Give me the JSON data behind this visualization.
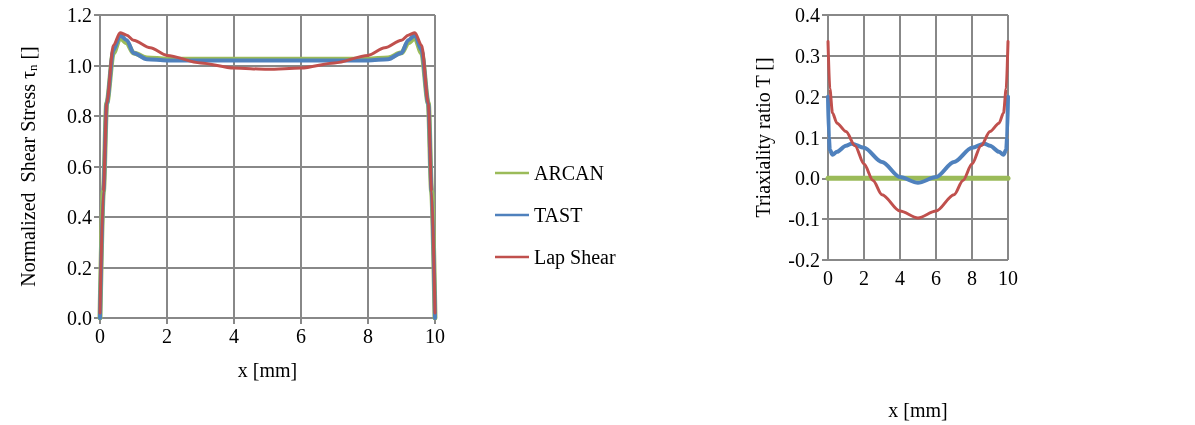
{
  "chart_data": [
    {
      "type": "line",
      "xlabel": "x [mm]",
      "ylabel": "Normalized  Shear Stress τ$_{n}$ []",
      "xlim": [
        0,
        10
      ],
      "xticks": [
        0,
        2,
        4,
        6,
        8,
        10
      ],
      "ylim": [
        0,
        1.2
      ],
      "yticks": [
        {
          "value": 0,
          "label": "0.0"
        },
        {
          "value": 0.2,
          "label": "0.2"
        },
        {
          "value": 0.4,
          "label": "0.4"
        },
        {
          "value": 0.6,
          "label": "0.6"
        },
        {
          "value": 0.8,
          "label": "0.8"
        },
        {
          "value": 1.0,
          "label": "1.0"
        },
        {
          "value": 1.2,
          "label": "1.2"
        }
      ],
      "grid": true,
      "legend": "right",
      "marker": "none",
      "line_style": "solid",
      "series": [
        {
          "name": "ARCAN",
          "color": "#9bbb59",
          "x": [
            0,
            0.1,
            0.2,
            0.4,
            0.6,
            0.8,
            1.0,
            1.4,
            2,
            4,
            6,
            8,
            8.6,
            9.0,
            9.2,
            9.4,
            9.6,
            9.8,
            9.9,
            10
          ],
          "values": [
            0,
            0.5,
            0.85,
            1.05,
            1.11,
            1.09,
            1.05,
            1.03,
            1.025,
            1.025,
            1.025,
            1.025,
            1.03,
            1.05,
            1.09,
            1.11,
            1.05,
            0.85,
            0.5,
            0
          ]
        },
        {
          "name": "TAST",
          "color": "#4f81bd",
          "x": [
            0,
            0.1,
            0.2,
            0.4,
            0.6,
            0.8,
            1.0,
            1.4,
            2,
            4,
            6,
            8,
            8.6,
            9.0,
            9.2,
            9.4,
            9.6,
            9.8,
            9.9,
            10
          ],
          "values": [
            0,
            0.5,
            0.85,
            1.06,
            1.12,
            1.1,
            1.05,
            1.025,
            1.02,
            1.02,
            1.02,
            1.02,
            1.025,
            1.05,
            1.1,
            1.12,
            1.06,
            0.85,
            0.5,
            0
          ]
        },
        {
          "name": "Lap Shear",
          "color": "#c0504d",
          "x": [
            0,
            0.1,
            0.2,
            0.4,
            0.6,
            0.8,
            1.0,
            1.5,
            2,
            3,
            4,
            5,
            6,
            7,
            8,
            8.5,
            9.0,
            9.2,
            9.4,
            9.6,
            9.8,
            9.9,
            10
          ],
          "values": [
            0.02,
            0.5,
            0.85,
            1.08,
            1.13,
            1.12,
            1.1,
            1.07,
            1.04,
            1.01,
            0.99,
            0.985,
            0.99,
            1.01,
            1.04,
            1.07,
            1.1,
            1.12,
            1.13,
            1.08,
            0.85,
            0.5,
            0.02
          ]
        }
      ]
    },
    {
      "type": "line",
      "xlabel": "x [mm]",
      "ylabel": "Triaxiality ratio T []",
      "xlim": [
        0,
        10
      ],
      "xticks": [
        0,
        2,
        4,
        6,
        8,
        10
      ],
      "ylim": [
        -0.2,
        0.4
      ],
      "yticks": [
        {
          "value": -0.2,
          "label": "-0.2"
        },
        {
          "value": -0.1,
          "label": "-0.1"
        },
        {
          "value": 0,
          "label": "0.0"
        },
        {
          "value": 0.1,
          "label": "0.1"
        },
        {
          "value": 0.2,
          "label": "0.2"
        },
        {
          "value": 0.3,
          "label": "0.3"
        },
        {
          "value": 0.4,
          "label": "0.4"
        }
      ],
      "grid": true,
      "marker": "none",
      "line_style": "solid",
      "series": [
        {
          "color": "#9bbb59",
          "x": [
            0,
            10
          ],
          "values": [
            0,
            0
          ]
        },
        {
          "color": "#4f81bd",
          "x": [
            0,
            0.05,
            0.1,
            0.25,
            0.5,
            1.0,
            1.3,
            2,
            3,
            4,
            5,
            6,
            7,
            8,
            8.7,
            9,
            9.5,
            9.75,
            9.9,
            9.95,
            10
          ],
          "values": [
            0.2,
            0.1,
            0.07,
            0.058,
            0.065,
            0.08,
            0.085,
            0.075,
            0.04,
            0.003,
            -0.011,
            0.003,
            0.04,
            0.075,
            0.085,
            0.08,
            0.065,
            0.058,
            0.07,
            0.1,
            0.2
          ]
        },
        {
          "color": "#c0504d",
          "x": [
            0,
            0.1,
            0.25,
            0.5,
            1,
            1.5,
            2,
            2.5,
            3,
            4,
            5,
            6,
            7,
            7.5,
            8,
            8.5,
            9,
            9.5,
            9.75,
            9.9,
            10
          ],
          "values": [
            0.335,
            0.22,
            0.16,
            0.135,
            0.115,
            0.08,
            0.035,
            -0.005,
            -0.04,
            -0.08,
            -0.097,
            -0.08,
            -0.04,
            -0.005,
            0.035,
            0.08,
            0.115,
            0.135,
            0.16,
            0.22,
            0.335
          ]
        }
      ]
    }
  ]
}
